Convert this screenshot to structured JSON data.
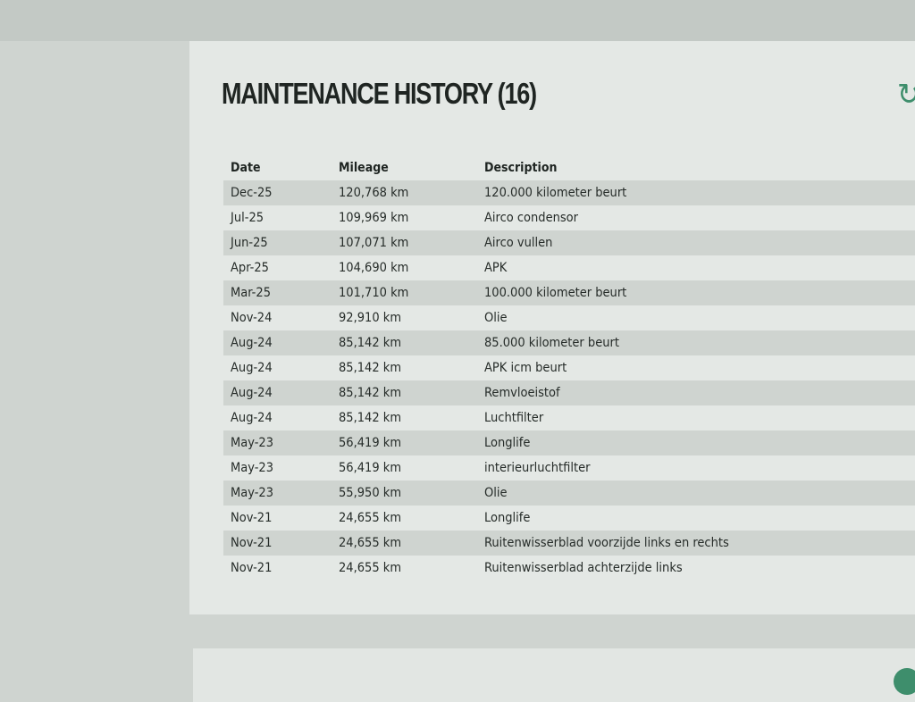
{
  "title": "MAINTENANCE HISTORY (16)",
  "icons": {
    "top_right": "refresh-icon",
    "bottom_right": "action-button-icon"
  },
  "colors": {
    "accent": "#3e8e6c"
  },
  "table": {
    "headers": [
      "Date",
      "Mileage",
      "Description"
    ],
    "rows": [
      [
        "Dec-25",
        "120,768 km",
        "120.000 kilometer beurt"
      ],
      [
        "Jul-25",
        "109,969 km",
        "Airco condensor"
      ],
      [
        "Jun-25",
        "107,071 km",
        "Airco vullen"
      ],
      [
        "Apr-25",
        "104,690 km",
        "APK"
      ],
      [
        "Mar-25",
        "101,710 km",
        "100.000 kilometer beurt"
      ],
      [
        "Nov-24",
        "92,910 km",
        "Olie"
      ],
      [
        "Aug-24",
        "85,142 km",
        "85.000 kilometer beurt"
      ],
      [
        "Aug-24",
        "85,142 km",
        "APK icm beurt"
      ],
      [
        "Aug-24",
        "85,142 km",
        "Remvloeistof"
      ],
      [
        "Aug-24",
        "85,142 km",
        "Luchtfilter"
      ],
      [
        "May-23",
        "56,419 km",
        "Longlife"
      ],
      [
        "May-23",
        "56,419 km",
        "interieurluchtfilter"
      ],
      [
        "May-23",
        "55,950 km",
        "Olie"
      ],
      [
        "Nov-21",
        "24,655 km",
        "Longlife"
      ],
      [
        "Nov-21",
        "24,655 km",
        "Ruitenwisserblad voorzijde links en rechts"
      ],
      [
        "Nov-21",
        "24,655 km",
        "Ruitenwisserblad achterzijde links"
      ]
    ]
  }
}
